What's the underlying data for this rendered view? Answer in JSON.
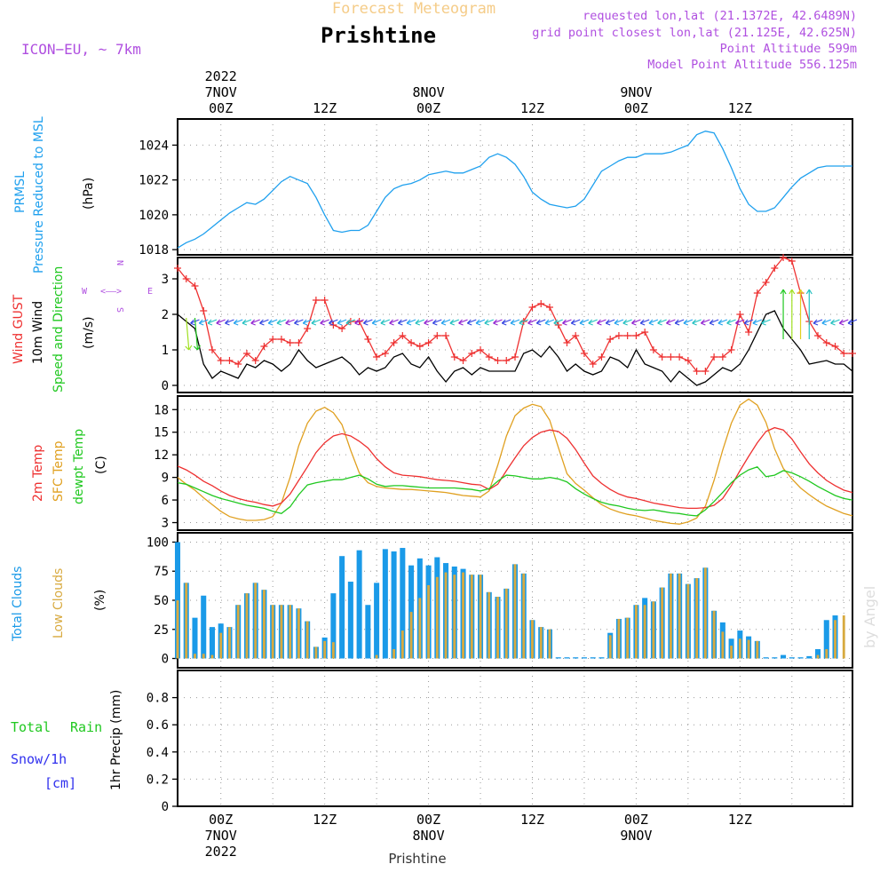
{
  "header": {
    "product": "Forecast Meteogram",
    "location": "Prishtine",
    "model": "ICON−EU, ~ 7km",
    "requested": "requested lon,lat (21.1372E, 42.6489N)",
    "grid_point": "grid point closest lon,lat (21.125E, 42.625N)",
    "point_altitude": "Point Altitude 599m",
    "model_altitude": "Model Point Altitude 556.125m",
    "watermark": "by Angel",
    "footer_location": "Prishtine"
  },
  "time_axis": {
    "top": [
      {
        "t": 0,
        "lines": [
          "2022",
          "7NOV",
          "00Z"
        ]
      },
      {
        "t": 12,
        "lines": [
          "12Z"
        ]
      },
      {
        "t": 24,
        "lines": [
          "8NOV",
          "00Z"
        ]
      },
      {
        "t": 36,
        "lines": [
          "12Z"
        ]
      },
      {
        "t": 48,
        "lines": [
          "9NOV",
          "00Z"
        ]
      },
      {
        "t": 60,
        "lines": [
          "12Z"
        ]
      }
    ],
    "bottom": [
      {
        "t": 0,
        "lines": [
          "00Z",
          "7NOV",
          "2022"
        ]
      },
      {
        "t": 12,
        "lines": [
          "12Z"
        ]
      },
      {
        "t": 24,
        "lines": [
          "00Z",
          "8NOV"
        ]
      },
      {
        "t": 36,
        "lines": [
          "12Z"
        ]
      },
      {
        "t": 48,
        "lines": [
          "00Z",
          "9NOV"
        ]
      },
      {
        "t": 60,
        "lines": [
          "12Z"
        ]
      }
    ]
  },
  "colors": {
    "pressure": "#1fa0ee",
    "gust": "#ee3030",
    "wind": "#000000",
    "temp2m": "#ee3030",
    "sfc": "#e0a020",
    "dewpt": "#20c820",
    "total_clouds": "#1a9ae8",
    "low_clouds": "#d8aa40",
    "rain": "#20c820",
    "snow": "#3030ee",
    "label_purple": "#b050e0",
    "grid": "#999999"
  },
  "panels": {
    "pressure": {
      "labels": [
        "PRMSL",
        "Pressure Reduced to MSL"
      ],
      "unit": "(hPa)"
    },
    "wind": {
      "labels": [
        "Wind GUST",
        "10m Wind",
        "Speed and Direction"
      ],
      "unit": "(m/s)",
      "compass": {
        "w": "W",
        "e": "E",
        "arrow": "<––>",
        "n": "N",
        "s": "S"
      }
    },
    "temp": {
      "labels": [
        "2m Temp",
        "SFC Temp",
        "dewpt Temp"
      ],
      "unit": "(C)"
    },
    "clouds": {
      "labels": [
        "Total Clouds",
        "Low Clouds"
      ],
      "unit": "(%)"
    },
    "precip": {
      "labels": [
        "Total",
        "Rain",
        "Snow/1h",
        "[cm]"
      ],
      "unit": "1hr Precip (mm)"
    }
  },
  "chart_data": [
    {
      "type": "line",
      "x": [
        -5,
        -4,
        -3,
        -2,
        -1,
        0,
        1,
        2,
        3,
        4,
        5,
        6,
        7,
        8,
        9,
        10,
        11,
        12,
        13,
        14,
        15,
        16,
        17,
        18,
        19,
        20,
        21,
        22,
        23,
        24,
        25,
        26,
        27,
        28,
        29,
        30,
        31,
        32,
        33,
        34,
        35,
        36,
        37,
        38,
        39,
        40,
        41,
        42,
        43,
        44,
        45,
        46,
        47,
        48,
        49,
        50,
        51,
        52,
        53,
        54,
        55,
        56,
        57,
        58,
        59,
        60,
        61,
        62,
        63,
        64,
        65,
        66,
        67,
        68,
        69,
        70,
        71,
        72,
        73
      ],
      "series": [
        {
          "name": "PRMSL",
          "values": [
            1018.1,
            1018.4,
            1018.6,
            1018.9,
            1019.3,
            1019.7,
            1020.1,
            1020.4,
            1020.7,
            1020.6,
            1020.9,
            1021.4,
            1021.9,
            1022.2,
            1022.0,
            1021.8,
            1021.0,
            1020.0,
            1019.1,
            1019.0,
            1019.1,
            1019.1,
            1019.4,
            1020.2,
            1021.0,
            1021.5,
            1021.7,
            1021.8,
            1022.0,
            1022.3,
            1022.4,
            1022.5,
            1022.4,
            1022.4,
            1022.6,
            1022.8,
            1023.3,
            1023.5,
            1023.3,
            1022.9,
            1022.2,
            1021.3,
            1020.9,
            1020.6,
            1020.5,
            1020.4,
            1020.5,
            1020.9,
            1021.7,
            1022.5,
            1022.8,
            1023.1,
            1023.3,
            1023.3,
            1023.5,
            1023.5,
            1023.5,
            1023.6,
            1023.8,
            1024.0,
            1024.6,
            1024.8,
            1024.7,
            1023.8,
            1022.7,
            1021.5,
            1020.6,
            1020.2,
            1020.2,
            1020.4,
            1021.0,
            1021.6,
            1022.1,
            1022.4,
            1022.7,
            1022.8,
            1022.8,
            1022.8,
            1022.8
          ]
        }
      ],
      "ylabel": "(hPa)",
      "ylim": [
        1017.7,
        1025.5
      ],
      "yticks": [
        1018,
        1020,
        1022,
        1024
      ],
      "grid": true
    },
    {
      "type": "line",
      "x": [
        -5,
        -4,
        -3,
        -2,
        -1,
        0,
        1,
        2,
        3,
        4,
        5,
        6,
        7,
        8,
        9,
        10,
        11,
        12,
        13,
        14,
        15,
        16,
        17,
        18,
        19,
        20,
        21,
        22,
        23,
        24,
        25,
        26,
        27,
        28,
        29,
        30,
        31,
        32,
        33,
        34,
        35,
        36,
        37,
        38,
        39,
        40,
        41,
        42,
        43,
        44,
        45,
        46,
        47,
        48,
        49,
        50,
        51,
        52,
        53,
        54,
        55,
        56,
        57,
        58,
        59,
        60,
        61,
        62,
        63,
        64,
        65,
        66,
        67,
        68,
        69,
        70,
        71,
        72,
        73
      ],
      "series": [
        {
          "name": "Wind GUST",
          "values": [
            3.3,
            3.0,
            2.8,
            2.1,
            1.0,
            0.7,
            0.7,
            0.6,
            0.9,
            0.7,
            1.1,
            1.3,
            1.3,
            1.2,
            1.2,
            1.6,
            2.4,
            2.4,
            1.7,
            1.6,
            1.8,
            1.8,
            1.3,
            0.8,
            0.9,
            1.2,
            1.4,
            1.2,
            1.1,
            1.2,
            1.4,
            1.4,
            0.8,
            0.7,
            0.9,
            1.0,
            0.8,
            0.7,
            0.7,
            0.8,
            1.8,
            2.2,
            2.3,
            2.2,
            1.7,
            1.2,
            1.4,
            0.9,
            0.6,
            0.8,
            1.3,
            1.4,
            1.4,
            1.4,
            1.5,
            1.0,
            0.8,
            0.8,
            0.8,
            0.7,
            0.4,
            0.4,
            0.8,
            0.8,
            1.0,
            2.0,
            1.5,
            2.6,
            2.9,
            3.3,
            3.6,
            3.5,
            2.6,
            1.8,
            1.4,
            1.2,
            1.1,
            0.9,
            0.9
          ]
        },
        {
          "name": "10m Wind",
          "values": [
            2.0,
            1.8,
            1.6,
            0.6,
            0.2,
            0.4,
            0.3,
            0.2,
            0.6,
            0.5,
            0.7,
            0.6,
            0.4,
            0.6,
            1.0,
            0.7,
            0.5,
            0.6,
            0.7,
            0.8,
            0.6,
            0.3,
            0.5,
            0.4,
            0.5,
            0.8,
            0.9,
            0.6,
            0.5,
            0.8,
            0.4,
            0.1,
            0.4,
            0.5,
            0.3,
            0.5,
            0.4,
            0.4,
            0.4,
            0.4,
            0.9,
            1.0,
            0.8,
            1.1,
            0.8,
            0.4,
            0.6,
            0.4,
            0.3,
            0.4,
            0.8,
            0.7,
            0.5,
            1.0,
            0.6,
            0.5,
            0.4,
            0.1,
            0.4,
            0.2,
            0.0,
            0.1,
            0.3,
            0.5,
            0.4,
            0.6,
            1.0,
            1.5,
            2.0,
            2.1,
            1.6,
            1.3,
            1.0,
            0.6,
            0.65,
            0.7,
            0.6,
            0.6,
            0.4
          ]
        }
      ],
      "ylabel": "(m/s)",
      "ylim": [
        -0.2,
        3.6
      ],
      "yticks": [
        0,
        1,
        2,
        3
      ],
      "grid": true
    },
    {
      "type": "line",
      "x": [
        -5,
        -4,
        -3,
        -2,
        -1,
        0,
        1,
        2,
        3,
        4,
        5,
        6,
        7,
        8,
        9,
        10,
        11,
        12,
        13,
        14,
        15,
        16,
        17,
        18,
        19,
        20,
        21,
        22,
        23,
        24,
        25,
        26,
        27,
        28,
        29,
        30,
        31,
        32,
        33,
        34,
        35,
        36,
        37,
        38,
        39,
        40,
        41,
        42,
        43,
        44,
        45,
        46,
        47,
        48,
        49,
        50,
        51,
        52,
        53,
        54,
        55,
        56,
        57,
        58,
        59,
        60,
        61,
        62,
        63,
        64,
        65,
        66,
        67,
        68,
        69,
        70,
        71,
        72,
        73
      ],
      "series": [
        {
          "name": "2m Temp",
          "values": [
            10.5,
            10.0,
            9.3,
            8.5,
            7.9,
            7.2,
            6.6,
            6.2,
            5.9,
            5.7,
            5.4,
            5.2,
            5.6,
            6.8,
            8.6,
            10.4,
            12.3,
            13.6,
            14.5,
            14.8,
            14.5,
            13.8,
            12.9,
            11.5,
            10.4,
            9.6,
            9.3,
            9.2,
            9.1,
            8.9,
            8.7,
            8.6,
            8.5,
            8.3,
            8.1,
            8.0,
            7.4,
            8.1,
            9.9,
            11.6,
            13.2,
            14.3,
            15.0,
            15.3,
            15.1,
            14.2,
            12.7,
            10.9,
            9.2,
            8.2,
            7.4,
            6.8,
            6.4,
            6.2,
            5.9,
            5.6,
            5.4,
            5.2,
            5.0,
            4.9,
            4.9,
            5.0,
            5.3,
            6.2,
            7.9,
            9.9,
            11.8,
            13.6,
            15.1,
            15.6,
            15.3,
            14.1,
            12.4,
            10.8,
            9.6,
            8.6,
            7.9,
            7.3,
            7.0
          ]
        },
        {
          "name": "SFC Temp",
          "values": [
            9.0,
            8.1,
            7.3,
            6.3,
            5.4,
            4.5,
            3.8,
            3.5,
            3.3,
            3.3,
            3.4,
            3.8,
            5.6,
            9.0,
            13.2,
            16.2,
            17.8,
            18.3,
            17.6,
            16.0,
            12.6,
            9.6,
            8.3,
            7.8,
            7.6,
            7.5,
            7.4,
            7.4,
            7.3,
            7.2,
            7.1,
            7.0,
            6.8,
            6.6,
            6.5,
            6.4,
            7.2,
            10.6,
            14.5,
            17.2,
            18.2,
            18.7,
            18.4,
            16.6,
            13.0,
            9.5,
            8.2,
            7.3,
            6.3,
            5.4,
            4.8,
            4.4,
            4.1,
            3.9,
            3.6,
            3.3,
            3.1,
            2.9,
            2.8,
            3.1,
            3.6,
            5.2,
            8.6,
            12.6,
            16.2,
            18.6,
            19.4,
            18.6,
            16.3,
            12.8,
            10.2,
            8.8,
            7.6,
            6.7,
            5.9,
            5.2,
            4.7,
            4.2,
            3.9
          ]
        },
        {
          "name": "dewpt Temp",
          "values": [
            8.3,
            8.1,
            7.6,
            7.1,
            6.6,
            6.2,
            5.9,
            5.6,
            5.3,
            5.1,
            4.9,
            4.5,
            4.2,
            5.1,
            6.7,
            8.0,
            8.3,
            8.5,
            8.7,
            8.7,
            9.0,
            9.3,
            8.8,
            8.1,
            7.8,
            7.9,
            7.9,
            7.8,
            7.7,
            7.6,
            7.6,
            7.6,
            7.6,
            7.5,
            7.4,
            7.2,
            7.5,
            8.5,
            9.3,
            9.2,
            9.0,
            8.8,
            8.8,
            9.0,
            8.8,
            8.4,
            7.5,
            6.8,
            6.2,
            5.7,
            5.4,
            5.2,
            4.9,
            4.7,
            4.6,
            4.7,
            4.5,
            4.3,
            4.2,
            4.0,
            3.9,
            4.7,
            5.8,
            7.0,
            8.3,
            9.3,
            10.0,
            10.4,
            9.1,
            9.3,
            9.9,
            9.6,
            9.1,
            8.5,
            7.8,
            7.2,
            6.6,
            6.2,
            6.0
          ]
        }
      ],
      "ylabel": "(C)",
      "ylim": [
        2.0,
        19.8
      ],
      "yticks": [
        3,
        6,
        9,
        12,
        15,
        18
      ],
      "grid": true
    },
    {
      "type": "bar",
      "x": [
        -5,
        -4,
        -3,
        -2,
        -1,
        0,
        1,
        2,
        3,
        4,
        5,
        6,
        7,
        8,
        9,
        10,
        11,
        12,
        13,
        14,
        15,
        16,
        17,
        18,
        19,
        20,
        21,
        22,
        23,
        24,
        25,
        26,
        27,
        28,
        29,
        30,
        31,
        32,
        33,
        34,
        35,
        36,
        37,
        38,
        39,
        40,
        41,
        42,
        43,
        44,
        45,
        46,
        47,
        48,
        49,
        50,
        51,
        52,
        53,
        54,
        55,
        56,
        57,
        58,
        59,
        60,
        61,
        62,
        63,
        64,
        65,
        66,
        67,
        68,
        69,
        70,
        71,
        72,
        73
      ],
      "series": [
        {
          "name": "Total Clouds",
          "values": [
            100,
            65,
            35,
            54,
            27,
            30,
            27,
            46,
            56,
            65,
            59,
            46,
            46,
            46,
            43,
            32,
            10,
            18,
            56,
            88,
            66,
            93,
            46,
            65,
            94,
            92,
            95,
            80,
            86,
            80,
            87,
            82,
            79,
            77,
            72,
            72,
            57,
            53,
            60,
            81,
            73,
            33,
            27,
            25,
            1,
            1,
            1,
            1,
            1,
            1,
            22,
            34,
            35,
            46,
            52,
            49,
            61,
            73,
            73,
            64,
            69,
            78,
            41,
            31,
            17,
            24,
            19,
            15,
            1,
            1,
            3,
            1,
            1,
            2,
            8,
            33,
            37,
            0,
            0
          ]
        },
        {
          "name": "Low Clouds",
          "values": [
            50,
            65,
            4,
            4,
            3,
            22,
            27,
            46,
            56,
            65,
            59,
            46,
            46,
            46,
            43,
            32,
            10,
            15,
            14,
            0,
            0,
            0,
            0,
            3,
            0,
            8,
            24,
            40,
            52,
            63,
            70,
            74,
            72,
            74,
            72,
            72,
            57,
            53,
            60,
            81,
            73,
            33,
            27,
            25,
            0,
            0,
            0,
            0,
            0,
            0,
            20,
            34,
            35,
            46,
            46,
            49,
            61,
            73,
            73,
            64,
            69,
            78,
            41,
            23,
            11,
            17,
            16,
            15,
            0,
            0,
            0,
            0,
            0,
            0,
            3,
            8,
            33,
            37,
            0
          ]
        }
      ],
      "ylabel": "(%)",
      "ylim": [
        -8,
        108
      ],
      "yticks": [
        0,
        25,
        50,
        75,
        100
      ],
      "grid": true
    },
    {
      "type": "bar",
      "x": [
        -5,
        73
      ],
      "series": [
        {
          "name": "Total",
          "values": [
            0,
            0
          ]
        },
        {
          "name": "Rain",
          "values": [
            0,
            0
          ]
        },
        {
          "name": "Snow/1h",
          "values": [
            0,
            0
          ]
        }
      ],
      "ylabel": "1hr Precip (mm)",
      "ylim": [
        0,
        1.0
      ],
      "yticks": [
        0,
        0.2,
        0.4,
        0.6,
        0.8
      ],
      "grid": true
    }
  ]
}
